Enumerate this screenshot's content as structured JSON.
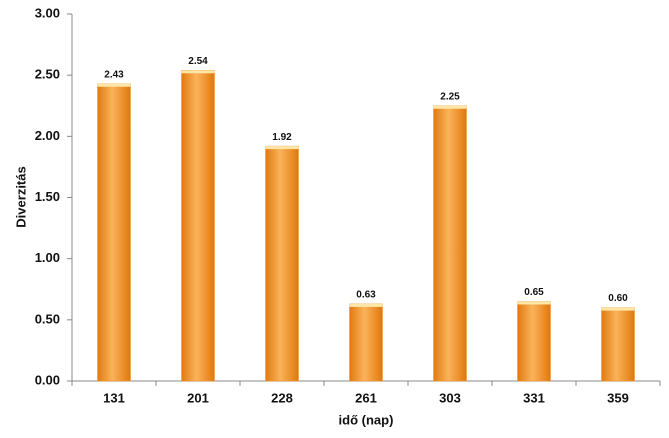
{
  "chart_data": {
    "type": "bar",
    "x_label": "idő (nap)",
    "y_label": "Diverzitás",
    "categories": [
      "131",
      "201",
      "228",
      "261",
      "303",
      "331",
      "359"
    ],
    "values": [
      2.43,
      2.54,
      1.92,
      0.63,
      2.25,
      0.65,
      0.6
    ],
    "value_labels": [
      "2.43",
      "2.54",
      "1.92",
      "0.63",
      "2.25",
      "0.65",
      "0.60"
    ],
    "color": "#f7931e",
    "ylim": [
      0,
      3
    ],
    "yticks": [
      {
        "value": 0,
        "label": "0.00"
      },
      {
        "value": 0.5,
        "label": "0.50"
      },
      {
        "value": 1,
        "label": "1.00"
      },
      {
        "value": 1.5,
        "label": "1.50"
      },
      {
        "value": 2,
        "label": "2.00"
      },
      {
        "value": 2.5,
        "label": "2.50"
      },
      {
        "value": 3,
        "label": "3.00"
      }
    ],
    "grid": false
  }
}
